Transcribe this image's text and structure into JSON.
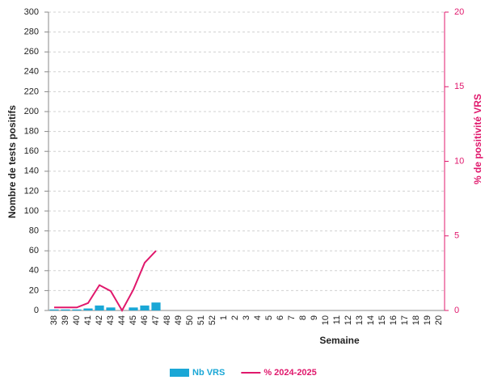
{
  "chart_data": {
    "type": "combo",
    "x_label": "Semaine",
    "y_label": "Nombre de tests positifs",
    "y2_label": "% de positivité VRS",
    "categories": [
      "38",
      "39",
      "40",
      "41",
      "42",
      "43",
      "44",
      "45",
      "46",
      "47",
      "48",
      "49",
      "50",
      "51",
      "52",
      "1",
      "2",
      "3",
      "4",
      "5",
      "6",
      "7",
      "8",
      "9",
      "10",
      "11",
      "12",
      "13",
      "14",
      "15",
      "16",
      "17",
      "18",
      "19",
      "20"
    ],
    "series": [
      {
        "name": "Nb VRS",
        "type": "bar",
        "color": "#1aa7d6",
        "values": [
          1,
          1,
          1,
          2,
          5,
          3,
          0,
          3,
          5,
          8,
          null,
          null,
          null,
          null,
          null,
          null,
          null,
          null,
          null,
          null,
          null,
          null,
          null,
          null,
          null,
          null,
          null,
          null,
          null,
          null,
          null,
          null,
          null,
          null,
          null
        ]
      },
      {
        "name": "% 2024-2025",
        "type": "line",
        "axis": "y2",
        "color": "#e0186c",
        "values": [
          0.2,
          0.2,
          0.2,
          0.5,
          1.7,
          1.3,
          0,
          1.4,
          3.2,
          4.0,
          null,
          null,
          null,
          null,
          null,
          null,
          null,
          null,
          null,
          null,
          null,
          null,
          null,
          null,
          null,
          null,
          null,
          null,
          null,
          null,
          null,
          null,
          null,
          null,
          null
        ]
      }
    ],
    "ylim": [
      0,
      300
    ],
    "yticks": [
      0,
      20,
      40,
      60,
      80,
      100,
      120,
      140,
      160,
      180,
      200,
      220,
      240,
      260,
      280,
      300
    ],
    "y2lim": [
      0,
      20
    ],
    "y2ticks": [
      0,
      5,
      10,
      15,
      20
    ],
    "y2_color": "#e0186c",
    "grid": true
  }
}
